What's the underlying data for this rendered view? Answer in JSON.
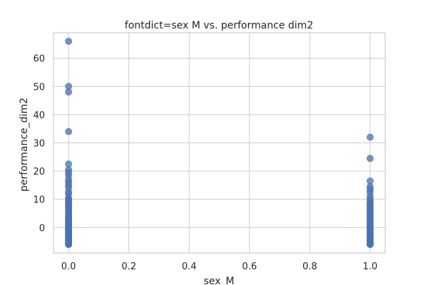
{
  "chart_data": {
    "type": "scatter",
    "title": "fontdict=sex M vs. performance dim2",
    "xlabel": "sex_M",
    "ylabel": "performance_dim2",
    "xlim": [
      -0.05,
      1.05
    ],
    "ylim": [
      -9,
      69
    ],
    "xticks": [
      0.0,
      0.2,
      0.4,
      0.6,
      0.8,
      1.0
    ],
    "xtick_labels": [
      "0.0",
      "0.2",
      "0.4",
      "0.6",
      "0.8",
      "1.0"
    ],
    "yticks": [
      0,
      10,
      20,
      30,
      40,
      50,
      60
    ],
    "ytick_labels": [
      "0",
      "10",
      "20",
      "30",
      "40",
      "50",
      "60"
    ],
    "grid": true,
    "color": "#4c72b0",
    "series": [
      {
        "x": [
          0,
          0,
          0,
          0,
          0,
          0,
          0,
          0,
          0,
          0,
          0,
          0,
          0,
          0,
          0,
          0,
          0,
          0,
          0,
          0,
          0,
          0,
          0,
          0,
          0,
          0,
          0,
          0,
          0,
          0,
          0,
          0,
          0,
          0,
          0,
          0,
          0,
          0,
          0,
          0,
          0,
          0,
          0,
          0,
          0,
          0,
          0,
          0,
          0,
          0,
          0,
          0,
          0,
          0,
          0,
          0,
          0,
          0,
          0,
          0,
          0,
          1,
          1,
          1,
          1,
          1,
          1,
          1,
          1,
          1,
          1,
          1,
          1,
          1,
          1,
          1,
          1,
          1,
          1,
          1,
          1,
          1,
          1,
          1,
          1,
          1,
          1,
          1,
          1,
          1,
          1,
          1,
          1,
          1,
          1,
          1,
          1,
          1,
          1,
          1,
          1,
          1,
          1,
          1
        ],
        "y": [
          66,
          50,
          48,
          34,
          22.5,
          20.5,
          19.5,
          18.5,
          17,
          16,
          15,
          14,
          12.5,
          12,
          10.5,
          10,
          9.5,
          9,
          8.5,
          8,
          7.5,
          7,
          6.5,
          6,
          5.5,
          5,
          4.5,
          4,
          3.5,
          3,
          2.5,
          2,
          1.5,
          1,
          0.5,
          0,
          -0.5,
          -1,
          -1.5,
          -2,
          -2.5,
          -3,
          -3.5,
          -4,
          -4.5,
          -5,
          -5.5,
          -6,
          -6,
          -5.8,
          -5.7,
          -5.5,
          -5,
          -4,
          -3,
          -2,
          -1,
          0,
          1,
          2,
          3,
          32,
          24.5,
          16.5,
          14.5,
          13.5,
          12.5,
          11,
          10,
          9,
          8.5,
          8,
          7.5,
          7,
          6.5,
          6,
          5.5,
          5,
          4.5,
          4,
          3.5,
          3,
          2.5,
          2,
          1.5,
          1,
          0.5,
          0,
          -0.5,
          -1,
          -1.5,
          -2,
          -2.5,
          -3,
          -3.5,
          -4,
          -4.5,
          -5,
          -5.5,
          -6,
          -6,
          -5.8,
          -5.5,
          -5
        ]
      }
    ]
  }
}
